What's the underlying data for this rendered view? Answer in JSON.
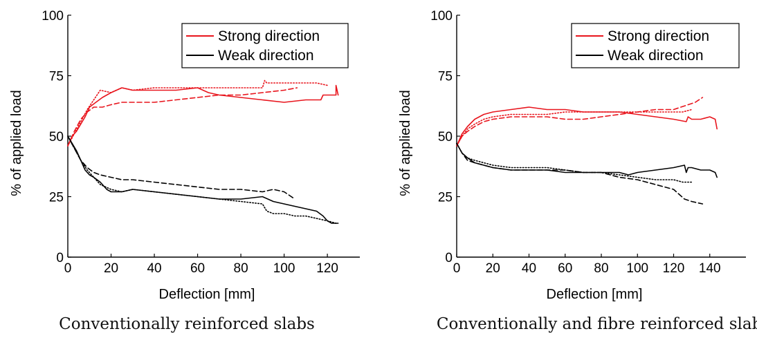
{
  "chart_data": [
    {
      "type": "line",
      "caption": "Conventionally reinforced slabs",
      "xlabel": "Deflection [mm]",
      "ylabel": "% of applied load",
      "xlim": [
        0,
        135
      ],
      "ylim": [
        0,
        100
      ],
      "xticks": [
        0,
        20,
        40,
        60,
        80,
        100,
        120
      ],
      "yticks": [
        0,
        25,
        50,
        75,
        100
      ],
      "grid": false,
      "legend_position": "top-right",
      "legend": [
        {
          "label": "Strong direction",
          "color": "#e8141c"
        },
        {
          "label": "Weak direction",
          "color": "#000000"
        }
      ],
      "series": [
        {
          "group": "strong",
          "style": "solid",
          "color": "#e8141c",
          "x": [
            0,
            2,
            4,
            6,
            8,
            10,
            13,
            16,
            20,
            25,
            30,
            40,
            50,
            60,
            65,
            70,
            80,
            90,
            100,
            110,
            117,
            118,
            120,
            124,
            124,
            125
          ],
          "y": [
            46,
            50,
            52,
            55,
            58,
            62,
            64,
            66,
            68,
            70,
            69,
            69,
            69,
            70,
            68,
            67,
            66,
            65,
            64,
            65,
            65,
            67,
            67,
            67,
            71,
            67
          ]
        },
        {
          "group": "strong",
          "style": "dotted",
          "color": "#e8141c",
          "x": [
            0,
            3,
            6,
            9,
            12,
            15,
            20,
            25,
            30,
            40,
            50,
            60,
            70,
            80,
            90,
            91,
            92,
            100,
            110,
            115,
            120
          ],
          "y": [
            46,
            51,
            56,
            61,
            65,
            69,
            68,
            70,
            69,
            70,
            70,
            70,
            70,
            70,
            70,
            73,
            72,
            72,
            72,
            72,
            71
          ]
        },
        {
          "group": "strong",
          "style": "dashed",
          "color": "#e8141c",
          "x": [
            0,
            3,
            6,
            9,
            12,
            16,
            20,
            25,
            30,
            40,
            50,
            60,
            70,
            80,
            90,
            100,
            106
          ],
          "y": [
            46,
            52,
            57,
            60,
            62,
            62,
            63,
            64,
            64,
            64,
            65,
            66,
            67,
            67,
            68,
            69,
            70
          ]
        },
        {
          "group": "weak",
          "style": "solid",
          "color": "#000000",
          "x": [
            0,
            2,
            4,
            6,
            8,
            10,
            12,
            15,
            18,
            20,
            25,
            30,
            40,
            50,
            60,
            70,
            80,
            90,
            95,
            100,
            105,
            110,
            115,
            118,
            120,
            122,
            124,
            125
          ],
          "y": [
            50,
            47,
            44,
            40,
            36,
            34,
            33,
            31,
            28,
            27,
            27,
            28,
            27,
            26,
            25,
            24,
            24,
            25,
            23,
            22,
            21,
            20,
            19,
            17,
            15,
            14,
            14,
            14
          ]
        },
        {
          "group": "weak",
          "style": "dotted",
          "color": "#000000",
          "x": [
            0,
            3,
            6,
            9,
            12,
            15,
            20,
            25,
            30,
            40,
            50,
            60,
            70,
            80,
            90,
            92,
            95,
            100,
            105,
            110,
            115,
            120,
            124
          ],
          "y": [
            50,
            45,
            40,
            36,
            33,
            30,
            28,
            27,
            28,
            27,
            26,
            25,
            24,
            23,
            22,
            19,
            18,
            18,
            17,
            17,
            16,
            15,
            14
          ]
        },
        {
          "group": "weak",
          "style": "dashed",
          "color": "#000000",
          "x": [
            0,
            3,
            6,
            9,
            12,
            15,
            20,
            25,
            30,
            40,
            50,
            60,
            70,
            80,
            90,
            95,
            100,
            105
          ],
          "y": [
            50,
            45,
            40,
            37,
            35,
            34,
            33,
            32,
            32,
            31,
            30,
            29,
            28,
            28,
            27,
            28,
            27,
            24
          ]
        }
      ]
    },
    {
      "type": "line",
      "caption": "Conventionally and fibre reinforced slabs",
      "xlabel": "Deflection [mm]",
      "ylabel": "% of applied load",
      "xlim": [
        0,
        160
      ],
      "ylim": [
        0,
        100
      ],
      "xticks": [
        0,
        20,
        40,
        60,
        80,
        100,
        120,
        140
      ],
      "yticks": [
        0,
        25,
        50,
        75,
        100
      ],
      "grid": false,
      "legend_position": "top-right",
      "legend": [
        {
          "label": "Strong direction",
          "color": "#e8141c"
        },
        {
          "label": "Weak direction",
          "color": "#000000"
        }
      ],
      "series": [
        {
          "group": "strong",
          "style": "solid",
          "color": "#e8141c",
          "x": [
            0,
            3,
            6,
            10,
            15,
            20,
            30,
            40,
            50,
            60,
            70,
            80,
            90,
            100,
            110,
            120,
            127,
            128,
            130,
            135,
            140,
            143,
            144
          ],
          "y": [
            46,
            51,
            54,
            57,
            59,
            60,
            61,
            62,
            61,
            61,
            60,
            60,
            60,
            59,
            58,
            57,
            56,
            58,
            57,
            57,
            58,
            57,
            53
          ]
        },
        {
          "group": "strong",
          "style": "dotted",
          "color": "#e8141c",
          "x": [
            0,
            3,
            6,
            10,
            15,
            20,
            30,
            40,
            50,
            60,
            70,
            80,
            90,
            100,
            110,
            120,
            125,
            130
          ],
          "y": [
            46,
            50,
            53,
            55,
            57,
            58,
            59,
            59,
            59,
            60,
            60,
            60,
            60,
            60,
            60,
            60,
            60,
            61
          ]
        },
        {
          "group": "strong",
          "style": "dashed",
          "color": "#e8141c",
          "x": [
            0,
            3,
            6,
            10,
            15,
            20,
            30,
            40,
            50,
            60,
            70,
            80,
            90,
            100,
            110,
            120,
            128,
            132,
            136
          ],
          "y": [
            46,
            50,
            52,
            54,
            56,
            57,
            58,
            58,
            58,
            57,
            57,
            58,
            59,
            60,
            61,
            61,
            63,
            64,
            66
          ]
        },
        {
          "group": "weak",
          "style": "solid",
          "color": "#000000",
          "x": [
            0,
            3,
            6,
            10,
            15,
            20,
            30,
            40,
            50,
            60,
            70,
            80,
            90,
            95,
            100,
            110,
            120,
            126,
            127,
            128,
            130,
            135,
            140,
            143,
            144
          ],
          "y": [
            47,
            43,
            41,
            39,
            38,
            37,
            36,
            36,
            36,
            35,
            35,
            35,
            35,
            34,
            35,
            36,
            37,
            38,
            35,
            37,
            37,
            36,
            36,
            35,
            33
          ]
        },
        {
          "group": "weak",
          "style": "dotted",
          "color": "#000000",
          "x": [
            0,
            3,
            6,
            10,
            15,
            20,
            30,
            40,
            50,
            60,
            70,
            80,
            90,
            100,
            110,
            120,
            125,
            130
          ],
          "y": [
            47,
            43,
            41,
            40,
            39,
            38,
            37,
            37,
            37,
            36,
            35,
            35,
            34,
            33,
            32,
            32,
            31,
            31
          ]
        },
        {
          "group": "weak",
          "style": "dashed",
          "color": "#000000",
          "x": [
            0,
            3,
            6,
            10,
            15,
            20,
            30,
            40,
            50,
            60,
            70,
            80,
            90,
            100,
            110,
            115,
            120,
            123,
            126,
            130,
            136
          ],
          "y": [
            47,
            43,
            40,
            39,
            38,
            37,
            36,
            36,
            36,
            36,
            35,
            35,
            33,
            32,
            30,
            29,
            28,
            26,
            24,
            23,
            22
          ]
        }
      ]
    }
  ]
}
